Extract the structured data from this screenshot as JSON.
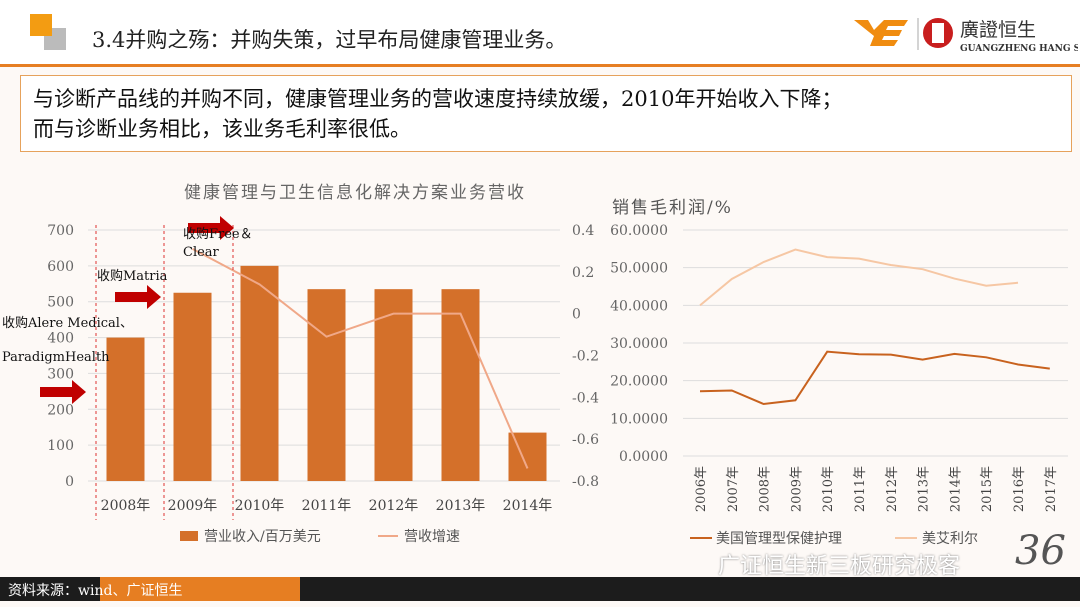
{
  "header": {
    "title": "3.4并购之殇：并购失策，过早布局健康管理业务。",
    "logo_text": "廣證恒生",
    "logo_sub": "GUANGZHENG HANG SENG"
  },
  "callout": {
    "line1": "与诊断产品线的并购不同，健康管理业务的营收速度持续放缓，2010年开始收入下降；",
    "line2": "而与诊断业务相比，该业务毛利率很低。"
  },
  "footer": {
    "source": "资料来源：wind、广证恒生",
    "watermark": "广证恒生新三板研究极客",
    "page": "36"
  },
  "chart_data": [
    {
      "type": "bar",
      "title": "健康管理与卫生信息化解决方案业务营收",
      "categories": [
        "2008年",
        "2009年",
        "2010年",
        "2011年",
        "2012年",
        "2013年",
        "2014年"
      ],
      "series": [
        {
          "name": "营业收入/百万美元",
          "values": [
            400,
            525,
            600,
            535,
            535,
            535,
            135
          ],
          "color": "#d4702a",
          "axis": "left"
        },
        {
          "name": "营收增速",
          "values": [
            null,
            0.31,
            0.14,
            -0.11,
            0.0,
            0.0,
            -0.74
          ],
          "color": "#f0a888",
          "axis": "right",
          "type": "line"
        }
      ],
      "ylim": [
        0,
        700
      ],
      "yticks": [
        "700",
        "600",
        "500",
        "400",
        "300",
        "200",
        "100",
        "0"
      ],
      "y2lim": [
        -0.8,
        0.4
      ],
      "y2ticks": [
        "0.4",
        "0.2",
        "0",
        "-0.2",
        "-0.4",
        "-0.6",
        "-0.8"
      ],
      "annotations": [
        "收购Alere Medical、",
        "ParadigmHealth",
        "收购Matria",
        "收购Free＆",
        "Clear"
      ],
      "legend": "bottom"
    },
    {
      "type": "line",
      "title": "销售毛利润/%",
      "categories": [
        "2006年",
        "2007年",
        "2008年",
        "2009年",
        "2010年",
        "2011年",
        "2012年",
        "2013年",
        "2014年",
        "2015年",
        "2016年",
        "2017年"
      ],
      "series": [
        {
          "name": "美国管理型保健护理",
          "values": [
            17.2,
            17.4,
            13.8,
            14.8,
            27.7,
            27.0,
            26.9,
            25.6,
            27.1,
            26.2,
            24.3,
            23.2
          ],
          "color": "#c8621e"
        },
        {
          "name": "美艾利尔",
          "values": [
            40.0,
            47.0,
            51.5,
            54.8,
            52.8,
            52.4,
            50.7,
            49.6,
            47.1,
            45.2,
            46.0,
            null
          ],
          "color": "#f6c7a4"
        }
      ],
      "ylim": [
        0,
        60
      ],
      "yticks": [
        "60.0000",
        "50.0000",
        "40.0000",
        "30.0000",
        "20.0000",
        "10.0000",
        "0.0000"
      ],
      "legend": "bottom"
    }
  ]
}
